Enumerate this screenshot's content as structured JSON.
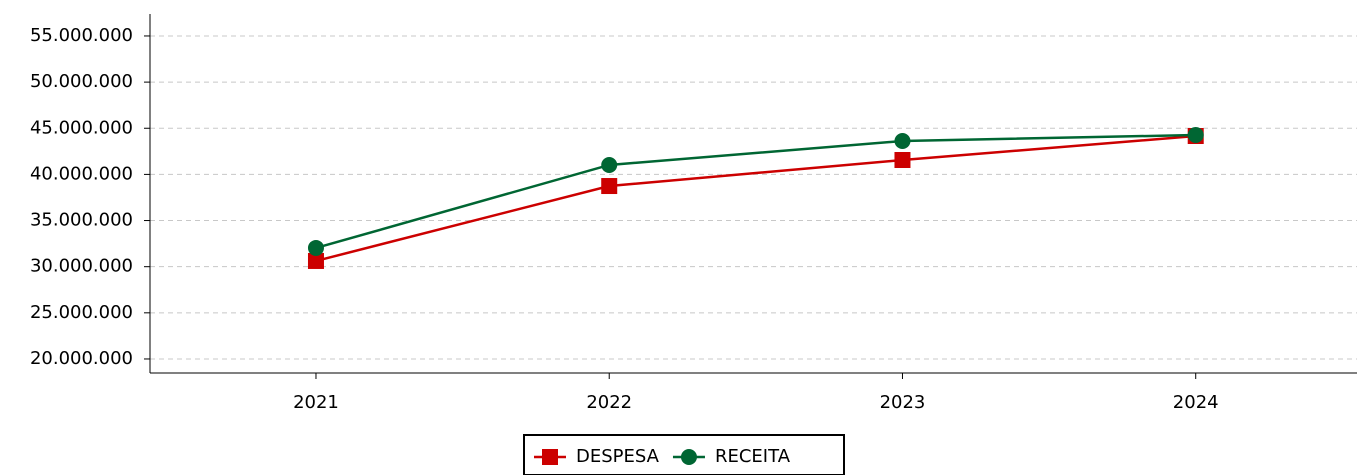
{
  "chart_data": {
    "type": "line",
    "x": [
      2021,
      2022,
      2023,
      2024
    ],
    "series": [
      {
        "name": "DESPESA",
        "color": "#cc0000",
        "marker": "square",
        "values": [
          30620000,
          38740000,
          41560000,
          44160000
        ]
      },
      {
        "name": "RECEITA",
        "color": "#006633",
        "marker": "circle",
        "values": [
          32030000,
          41020000,
          43620000,
          44270000
        ]
      }
    ],
    "xlim": [
      2020.434,
      2024.55
    ],
    "xticks": [
      2021,
      2022,
      2023,
      2024
    ],
    "ylim": [
      18480000,
      57380000
    ],
    "yticks": [
      {
        "value": 20000000,
        "label": "20.000.000"
      },
      {
        "value": 25000000,
        "label": "25.000.000"
      },
      {
        "value": 30000000,
        "label": "30.000.000"
      },
      {
        "value": 35000000,
        "label": "35.000.000"
      },
      {
        "value": 40000000,
        "label": "40.000.000"
      },
      {
        "value": 45000000,
        "label": "45.000.000"
      },
      {
        "value": 50000000,
        "label": "50.000.000"
      },
      {
        "value": 55000000,
        "label": "55.000.000"
      }
    ],
    "grid": true,
    "legend": "bottom"
  }
}
